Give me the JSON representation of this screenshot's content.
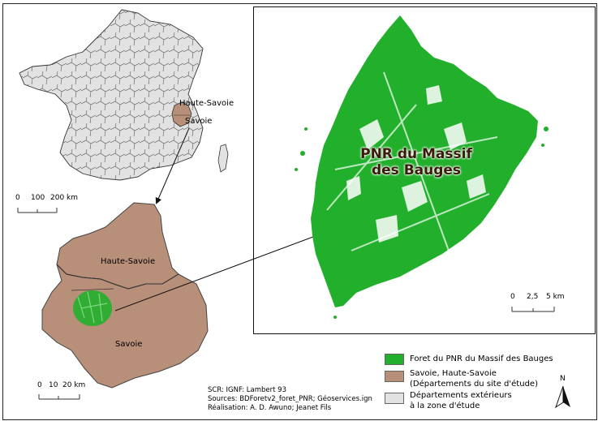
{
  "france_map": {
    "labels": {
      "haute_savoie": "Haute-Savoie",
      "savoie": "Savoie"
    },
    "scale": {
      "ticks": [
        "0",
        "100",
        "200 km"
      ]
    }
  },
  "departments_map": {
    "labels": {
      "haute_savoie": "Haute-Savoie",
      "savoie": "Savoie"
    },
    "scale": {
      "ticks": [
        "0",
        "10",
        "20 km"
      ]
    }
  },
  "forest_map": {
    "title_line1": "PNR du Massif",
    "title_line2": "des Bauges",
    "scale": {
      "ticks": [
        "0",
        "2,5",
        "5 km"
      ]
    }
  },
  "legend": {
    "items": [
      {
        "label": "Foret du PNR du Massif des Bauges",
        "color": "#22b02c"
      },
      {
        "label": "Savoie, Haute-Savoie",
        "label2": "(Départements du site d'étude)",
        "color": "#b88f79"
      },
      {
        "label": "Départements extérieurs",
        "label2": "à la zone d'étude",
        "color": "#e2e2e2"
      }
    ]
  },
  "north_arrow": {
    "label": "N"
  },
  "credits": {
    "line1": "SCR: IGNF: Lambert 93",
    "line2": "Sources: BDForetv2_foret_PNR; Géoservices.ign",
    "line3": "Réalisation: A. D. Awuno; Jeanet Fils"
  },
  "colors": {
    "forest": "#22b02c",
    "study_departments": "#b88f79",
    "outer_departments": "#e2e2e2"
  }
}
